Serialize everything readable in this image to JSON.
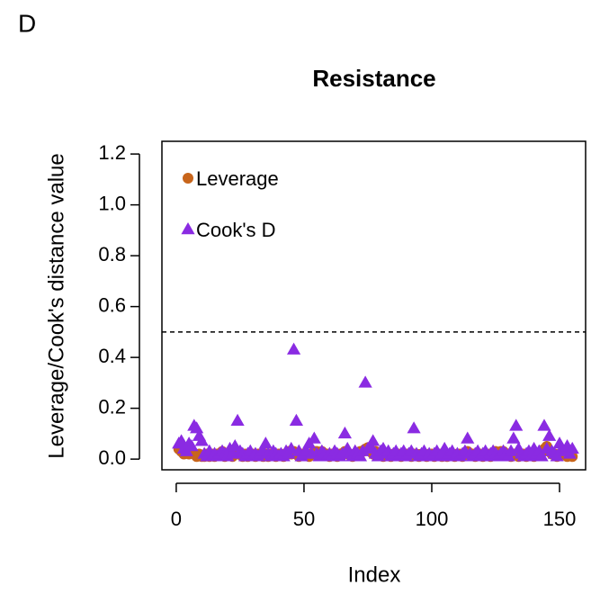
{
  "chart_data": {
    "type": "scatter",
    "panel_label": "D",
    "title": "Resistance",
    "x_label": "Index",
    "y_label": "Leverage/Cook's distance value",
    "xlim": [
      -5.6,
      160.2
    ],
    "ylim": [
      -0.042,
      1.25
    ],
    "xticks": [
      0,
      50,
      100,
      150
    ],
    "yticks": [
      {
        "value": 0,
        "label": "0.0"
      },
      0.2,
      0.4,
      0.6,
      0.8,
      {
        "value": 1,
        "label": "1.0"
      },
      1.2
    ],
    "hline": 0.5,
    "legend": "top-left",
    "x": [
      1,
      2,
      3,
      4,
      5,
      6,
      7,
      8,
      9,
      10,
      11,
      12,
      13,
      14,
      15,
      16,
      17,
      18,
      19,
      20,
      21,
      22,
      23,
      24,
      25,
      26,
      27,
      28,
      29,
      30,
      31,
      32,
      33,
      34,
      35,
      36,
      37,
      38,
      39,
      40,
      41,
      42,
      43,
      44,
      45,
      46,
      47,
      48,
      49,
      50,
      51,
      52,
      53,
      54,
      55,
      56,
      57,
      58,
      59,
      60,
      61,
      62,
      63,
      64,
      65,
      66,
      67,
      68,
      69,
      70,
      71,
      72,
      73,
      74,
      75,
      76,
      77,
      78,
      79,
      80,
      81,
      82,
      83,
      84,
      85,
      86,
      87,
      88,
      89,
      90,
      91,
      92,
      93,
      94,
      95,
      96,
      97,
      98,
      99,
      100,
      101,
      102,
      103,
      104,
      105,
      106,
      107,
      108,
      109,
      110,
      111,
      112,
      113,
      114,
      115,
      116,
      117,
      118,
      119,
      120,
      121,
      122,
      123,
      124,
      125,
      126,
      127,
      128,
      129,
      130,
      131,
      132,
      133,
      134,
      135,
      136,
      137,
      138,
      139,
      140,
      141,
      142,
      143,
      144,
      145,
      146,
      147,
      148,
      149,
      150,
      151,
      152,
      153,
      154,
      155
    ],
    "series": [
      {
        "name": "Leverage",
        "marker": "circle",
        "color": "#c8651b",
        "values": [
          0.04,
          0.03,
          0.02,
          0.03,
          0.02,
          0.03,
          0.02,
          0.01,
          0.02,
          0.01,
          0.01,
          0.02,
          0.01,
          0.02,
          0.01,
          0.02,
          0.02,
          0.03,
          0.01,
          0.02,
          0.02,
          0.01,
          0.03,
          0.02,
          0.02,
          0.01,
          0.02,
          0.01,
          0.02,
          0.02,
          0.01,
          0.02,
          0.02,
          0.01,
          0.02,
          0.01,
          0.02,
          0.02,
          0.01,
          0.02,
          0.02,
          0.01,
          0.02,
          0.03,
          0.02,
          0.03,
          0.02,
          0.01,
          0.02,
          0.02,
          0.02,
          0.01,
          0.02,
          0.03,
          0.03,
          0.02,
          0.03,
          0.02,
          0.02,
          0.01,
          0.02,
          0.02,
          0.01,
          0.02,
          0.02,
          0.03,
          0.02,
          0.02,
          0.01,
          0.02,
          0.02,
          0.03,
          0.03,
          0.04,
          0.045,
          0.03,
          0.02,
          0.03,
          0.02,
          0.02,
          0.01,
          0.02,
          0.02,
          0.01,
          0.02,
          0.02,
          0.02,
          0.01,
          0.02,
          0.02,
          0.02,
          0.01,
          0.02,
          0.02,
          0.01,
          0.02,
          0.02,
          0.01,
          0.02,
          0.02,
          0.01,
          0.02,
          0.02,
          0.01,
          0.02,
          0.01,
          0.02,
          0.02,
          0.01,
          0.02,
          0.02,
          0.01,
          0.02,
          0.03,
          0.02,
          0.02,
          0.01,
          0.02,
          0.02,
          0.01,
          0.02,
          0.02,
          0.01,
          0.02,
          0.03,
          0.02,
          0.03,
          0.03,
          0.02,
          0.02,
          0.01,
          0.02,
          0.02,
          0.01,
          0.02,
          0.02,
          0.01,
          0.02,
          0.02,
          0.01,
          0.02,
          0.02,
          0.03,
          0.04,
          0.05,
          0.03,
          0.02,
          0.02,
          0.01,
          0.02,
          0.02,
          0.02,
          0.01,
          0.02,
          0.01
        ]
      },
      {
        "name": "Cook's D",
        "marker": "triangle",
        "color": "#8a2be2",
        "values": [
          0.06,
          0.07,
          0.04,
          0.03,
          0.06,
          0.05,
          0.13,
          0.12,
          0.09,
          0.07,
          0.02,
          0.01,
          0.03,
          0.01,
          0.02,
          0.01,
          0.02,
          0.03,
          0.02,
          0.01,
          0.04,
          0.02,
          0.05,
          0.15,
          0.03,
          0.02,
          0.01,
          0.02,
          0.03,
          0.01,
          0.02,
          0.01,
          0.02,
          0.03,
          0.06,
          0.02,
          0.01,
          0.03,
          0.02,
          0.01,
          0.02,
          0.01,
          0.03,
          0.02,
          0.04,
          0.43,
          0.15,
          0.03,
          0.01,
          0.02,
          0.03,
          0.06,
          0.02,
          0.08,
          0.02,
          0.01,
          0.03,
          0.02,
          0.01,
          0.02,
          0.01,
          0.03,
          0.02,
          0.01,
          0.02,
          0.1,
          0.04,
          0.02,
          0.01,
          0.03,
          0.02,
          0.01,
          0.03,
          0.3,
          0.04,
          0.05,
          0.07,
          0.02,
          0.01,
          0.03,
          0.04,
          0.02,
          0.03,
          0.01,
          0.02,
          0.03,
          0.01,
          0.02,
          0.03,
          0.01,
          0.02,
          0.03,
          0.12,
          0.02,
          0.01,
          0.02,
          0.03,
          0.01,
          0.02,
          0.01,
          0.02,
          0.03,
          0.01,
          0.02,
          0.04,
          0.01,
          0.02,
          0.03,
          0.01,
          0.02,
          0.01,
          0.02,
          0.03,
          0.08,
          0.02,
          0.01,
          0.02,
          0.03,
          0.01,
          0.02,
          0.03,
          0.01,
          0.02,
          0.03,
          0.02,
          0.01,
          0.02,
          0.03,
          0.02,
          0.01,
          0.03,
          0.08,
          0.13,
          0.04,
          0.02,
          0.01,
          0.02,
          0.03,
          0.01,
          0.04,
          0.02,
          0.03,
          0.01,
          0.13,
          0.04,
          0.09,
          0.03,
          0.02,
          0.01,
          0.06,
          0.04,
          0.03,
          0.05,
          0.02,
          0.04
        ]
      }
    ]
  }
}
